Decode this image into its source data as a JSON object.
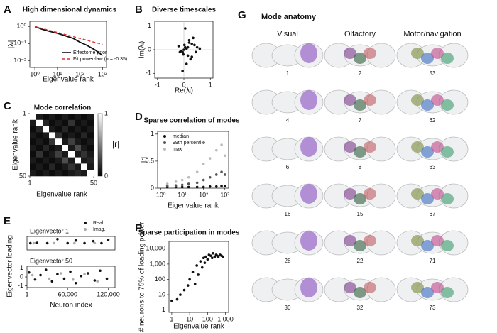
{
  "panel_labels": [
    "A",
    "B",
    "C",
    "D",
    "E",
    "F",
    "G"
  ],
  "chart_data": [
    {
      "type": "line",
      "title": "High dimensional dynamics",
      "xlabel": "Eigenvalue rank",
      "ylabel": "|λᵢ|",
      "xlog": true,
      "ylog": true,
      "xlim": [
        0.6,
        1500
      ],
      "ylim": [
        0.004,
        2
      ],
      "xticks": [
        {
          "value": 1,
          "label": "10⁰"
        },
        {
          "value": 10,
          "label": "10¹"
        },
        {
          "value": 100,
          "label": "10²"
        },
        {
          "value": 1000,
          "label": "10³"
        }
      ],
      "yticks": [
        {
          "value": 1,
          "label": "10⁰"
        },
        {
          "value": 0.1,
          "label": "10⁻¹"
        },
        {
          "value": 0.01,
          "label": "10⁻²"
        }
      ],
      "legend": "lower right",
      "series": [
        {
          "name": "Effectome prior",
          "color": "#111111",
          "x": [
            1,
            2,
            3,
            5,
            10,
            20,
            50,
            100,
            200,
            500,
            1000
          ],
          "values": [
            1,
            0.7,
            0.6,
            0.5,
            0.4,
            0.3,
            0.2,
            0.12,
            0.08,
            0.04,
            0.02
          ]
        },
        {
          "name": "Fit power-law (α = -0.35)",
          "color": "#e03030",
          "dash": true,
          "x": [
            1,
            1000
          ],
          "values": [
            1,
            0.089
          ]
        }
      ]
    },
    {
      "type": "scatter",
      "title": "Diverse timescales",
      "xlabel": "Re(λᵢ)",
      "ylabel": "Im(λᵢ)",
      "xlim": [
        -1.1,
        1.1
      ],
      "ylim": [
        -1.2,
        1.2
      ],
      "xticks": [
        -1,
        0,
        1
      ],
      "yticks": [
        -1,
        0,
        1
      ],
      "zero_lines": true,
      "series": [
        {
          "color": "#111111",
          "x": [
            0,
            0.05,
            -0.05,
            0.1,
            -0.1,
            0.02,
            -0.02,
            0.15,
            -0.15,
            0.2,
            0.3,
            0.4,
            0.25,
            0.5,
            0.35,
            -0.2,
            0.1,
            0.05,
            0.45,
            0.3,
            -0.05,
            0.6,
            0.2,
            0.15
          ],
          "values": [
            0,
            0.1,
            -0.1,
            0.05,
            -0.05,
            0.2,
            -0.2,
            0.1,
            -0.1,
            0.3,
            -0.3,
            0.2,
            -0.4,
            0.1,
            0.5,
            0.15,
            -0.6,
            0.9,
            -0.1,
            0.25,
            -0.9,
            0.05,
            0.4,
            -0.25
          ]
        }
      ]
    },
    {
      "type": "heatmap",
      "title": "Mode correlation",
      "xlabel": "Eigenvalue rank",
      "ylabel": "Eigenvalue rank",
      "xlim": [
        1,
        50
      ],
      "ylim": [
        50,
        1
      ],
      "xticks": [
        1,
        50
      ],
      "yticks": [
        1,
        50
      ],
      "zlim": [
        0,
        1
      ],
      "zticks": [
        0,
        1
      ],
      "colorbar_label": "|r|",
      "z": [
        [
          1,
          0.1,
          0.05,
          0.1,
          0.05,
          0.1,
          0.05,
          0.1,
          0.05,
          0.1
        ],
        [
          0.1,
          1,
          0.15,
          0.05,
          0.1,
          0.05,
          0.2,
          0.05,
          0.1,
          0.05
        ],
        [
          0.05,
          0.15,
          1,
          0.1,
          0.05,
          0.15,
          0.05,
          0.1,
          0.05,
          0.1
        ],
        [
          0.1,
          0.05,
          0.1,
          1,
          0.2,
          0.05,
          0.1,
          0.05,
          0.15,
          0.05
        ],
        [
          0.05,
          0.1,
          0.05,
          0.2,
          1,
          0.1,
          0.25,
          0.1,
          0.05,
          0.1
        ],
        [
          0.1,
          0.05,
          0.15,
          0.05,
          0.1,
          1,
          0.1,
          0.3,
          0.1,
          0.05
        ],
        [
          0.05,
          0.2,
          0.05,
          0.1,
          0.25,
          0.1,
          1,
          0.1,
          0.2,
          0.1
        ],
        [
          0.1,
          0.05,
          0.1,
          0.05,
          0.1,
          0.3,
          0.1,
          1,
          0.1,
          0.15
        ],
        [
          0.05,
          0.1,
          0.05,
          0.15,
          0.05,
          0.1,
          0.2,
          0.1,
          1,
          0.1
        ],
        [
          0.1,
          0.05,
          0.1,
          0.05,
          0.1,
          0.05,
          0.1,
          0.15,
          0.1,
          1
        ]
      ]
    },
    {
      "type": "scatter",
      "title": "Sparse correlation of modes",
      "xlabel": "Eigenvalue rank",
      "ylabel": "|r|",
      "xlog": true,
      "xlim": [
        0.7,
        1500
      ],
      "ylim": [
        0,
        1.05
      ],
      "xticks": [
        {
          "value": 1,
          "label": "10⁰"
        },
        {
          "value": 10,
          "label": "10¹"
        },
        {
          "value": 100,
          "label": "10²"
        },
        {
          "value": 1000,
          "label": "10³"
        }
      ],
      "yticks": [
        0,
        0.5,
        1
      ],
      "legend": "upper left",
      "series": [
        {
          "name": "median",
          "color": "#111111",
          "x": [
            2,
            5,
            10,
            20,
            50,
            100,
            200,
            400,
            700,
            1000
          ],
          "values": [
            0.02,
            0.02,
            0.02,
            0.02,
            0.02,
            0.02,
            0.03,
            0.03,
            0.04,
            0.04
          ]
        },
        {
          "name": "99th percentile",
          "color": "#555555",
          "x": [
            2,
            5,
            10,
            20,
            50,
            100,
            200,
            400,
            700,
            1000
          ],
          "values": [
            0.04,
            0.05,
            0.06,
            0.08,
            0.1,
            0.15,
            0.2,
            0.25,
            0.3,
            0.25
          ]
        },
        {
          "name": "max",
          "color": "#bbbbbb",
          "x": [
            2,
            5,
            10,
            20,
            50,
            100,
            200,
            400,
            700,
            1000
          ],
          "values": [
            0.08,
            0.12,
            0.15,
            0.2,
            0.3,
            0.45,
            0.55,
            0.7,
            0.8,
            0.6
          ]
        }
      ]
    },
    {
      "type": "scatter",
      "title": "Eigenvector 1",
      "xlim": [
        1,
        130000
      ],
      "ylim": [
        -1,
        1
      ],
      "legend": "top right",
      "series": [
        {
          "name": "Real",
          "color": "#111111",
          "x": [
            5000,
            15000,
            30000,
            45000,
            60000,
            72000,
            85000,
            98000,
            110000,
            120000
          ],
          "values": [
            0,
            0.05,
            0,
            0.6,
            0,
            0.4,
            0,
            0.3,
            0,
            0.5
          ]
        },
        {
          "name": "Imag.",
          "color": "#aaaaaa",
          "x": [
            10000,
            40000,
            70000,
            100000
          ],
          "values": [
            0,
            0,
            0,
            0
          ]
        }
      ]
    },
    {
      "type": "scatter",
      "title": "Eigenvector 50",
      "xlabel": "Neuron index",
      "ylabel": "Eigenvector loading",
      "xlim": [
        1,
        130000
      ],
      "ylim": [
        -1.2,
        1.2
      ],
      "xticks": [
        1,
        {
          "value": 60000,
          "label": "60,000"
        },
        {
          "value": 120000,
          "label": "120,000"
        }
      ],
      "yticks": [
        -1,
        0,
        1
      ],
      "series": [
        {
          "color": "#111111",
          "x": [
            3000,
            12000,
            20000,
            28000,
            37000,
            45000,
            55000,
            64000,
            72000,
            80000,
            90000,
            100000,
            108000,
            118000
          ],
          "values": [
            0.5,
            -0.3,
            0.2,
            0.8,
            -0.5,
            0.3,
            -0.2,
            0.6,
            -0.7,
            0.1,
            0.4,
            -0.4,
            0.7,
            -0.2
          ]
        },
        {
          "color": "#aaaaaa",
          "x": [
            8000,
            33000,
            50000,
            68000,
            85000,
            104000
          ],
          "values": [
            0.2,
            -0.2,
            0.4,
            -0.3,
            0.3,
            -0.5
          ]
        }
      ]
    },
    {
      "type": "scatter",
      "title": "Sparse participation in modes",
      "xlabel": "Eigenvalue rank",
      "ylabel": "# neurons to 75% of loading power",
      "xlog": true,
      "ylog": true,
      "xlim": [
        0.7,
        1500
      ],
      "ylim": [
        0.7,
        30000
      ],
      "xticks": [
        1,
        10,
        100,
        {
          "value": 1000,
          "label": "1,000"
        }
      ],
      "yticks": [
        1,
        10,
        100,
        {
          "value": 1000,
          "label": "1,000"
        },
        {
          "value": 10000,
          "label": "10,000"
        }
      ],
      "series": [
        {
          "color": "#111111",
          "x": [
            1,
            2,
            3,
            5,
            8,
            10,
            15,
            20,
            25,
            30,
            40,
            50,
            60,
            70,
            80,
            100,
            120,
            150,
            180,
            200,
            250,
            300,
            350,
            400,
            500,
            600,
            700
          ],
          "values": [
            4,
            5,
            10,
            20,
            40,
            100,
            300,
            50,
            800,
            200,
            1500,
            600,
            2500,
            1200,
            3000,
            2000,
            4000,
            3500,
            2500,
            5000,
            3000,
            4000,
            3500,
            3000,
            4000,
            3500,
            3000
          ]
        }
      ]
    }
  ],
  "mode_anatomy": {
    "title": "Mode anatomy",
    "columns": [
      {
        "name": "Visual",
        "modes": [
          1,
          4,
          6,
          16,
          28,
          30
        ]
      },
      {
        "name": "Olfactory",
        "modes": [
          2,
          7,
          8,
          15,
          22,
          32
        ]
      },
      {
        "name": "Motor/navigation",
        "modes": [
          53,
          62,
          63,
          67,
          71,
          73
        ]
      }
    ]
  }
}
